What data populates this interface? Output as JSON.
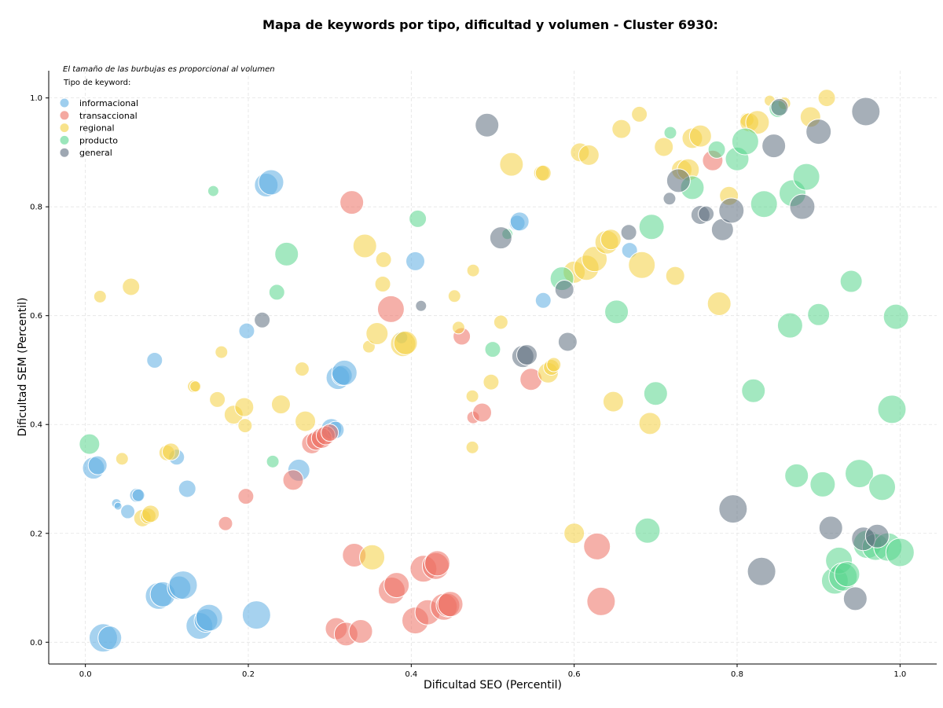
{
  "chart_data": {
    "type": "scatter",
    "title": "Mapa de keywords por tipo, dificultad y volumen - Cluster 6930:",
    "xlabel": "Dificultad SEO (Percentil)",
    "ylabel": "Dificultad SEM (Percentil)",
    "xlim": [
      -0.045,
      1.045
    ],
    "ylim": [
      -0.04,
      1.05
    ],
    "x_ticks": [
      "0.0",
      "0.2",
      "0.4",
      "0.6",
      "0.8",
      "1.0"
    ],
    "y_ticks": [
      "0.0",
      "0.2",
      "0.4",
      "0.6",
      "0.8",
      "1.0"
    ],
    "grid": true,
    "size_note": "El tamaño de las burbujas es proporcional al volumen",
    "legend_title": "Tipo de keyword:",
    "legend_position": "top-left",
    "series": [
      {
        "name": "informacional",
        "color": "#5DADE2",
        "points": [
          [
            0.01,
            0.32,
            14
          ],
          [
            0.015,
            0.325,
            12
          ],
          [
            0.038,
            0.255,
            6
          ],
          [
            0.04,
            0.25,
            5
          ],
          [
            0.052,
            0.24,
            9
          ],
          [
            0.063,
            0.27,
            9
          ],
          [
            0.065,
            0.27,
            8
          ],
          [
            0.085,
            0.518,
            10
          ],
          [
            0.112,
            0.34,
            10
          ],
          [
            0.125,
            0.282,
            11
          ],
          [
            0.022,
            0.008,
            18
          ],
          [
            0.03,
            0.008,
            15
          ],
          [
            0.09,
            0.085,
            17
          ],
          [
            0.095,
            0.088,
            16
          ],
          [
            0.115,
            0.1,
            15
          ],
          [
            0.12,
            0.105,
            18
          ],
          [
            0.14,
            0.03,
            17
          ],
          [
            0.148,
            0.04,
            15
          ],
          [
            0.152,
            0.045,
            17
          ],
          [
            0.21,
            0.05,
            18
          ],
          [
            0.198,
            0.572,
            10
          ],
          [
            0.222,
            0.84,
            15
          ],
          [
            0.228,
            0.845,
            16
          ],
          [
            0.262,
            0.316,
            14
          ],
          [
            0.31,
            0.486,
            15
          ],
          [
            0.315,
            0.49,
            13
          ],
          [
            0.318,
            0.495,
            16
          ],
          [
            0.302,
            0.392,
            13
          ],
          [
            0.307,
            0.39,
            11
          ],
          [
            0.405,
            0.7,
            12
          ],
          [
            0.388,
            0.56,
            8
          ],
          [
            0.53,
            0.77,
            10
          ],
          [
            0.533,
            0.773,
            12
          ],
          [
            0.562,
            0.628,
            10
          ],
          [
            0.668,
            0.72,
            10
          ]
        ]
      },
      {
        "name": "transaccional",
        "color": "#EC7063",
        "points": [
          [
            0.172,
            0.218,
            9
          ],
          [
            0.197,
            0.268,
            10
          ],
          [
            0.255,
            0.298,
            13
          ],
          [
            0.278,
            0.365,
            13
          ],
          [
            0.283,
            0.37,
            12
          ],
          [
            0.29,
            0.375,
            13
          ],
          [
            0.295,
            0.38,
            12
          ],
          [
            0.3,
            0.385,
            11
          ],
          [
            0.327,
            0.808,
            15
          ],
          [
            0.33,
            0.16,
            15
          ],
          [
            0.308,
            0.025,
            14
          ],
          [
            0.32,
            0.015,
            15
          ],
          [
            0.338,
            0.02,
            15
          ],
          [
            0.375,
            0.612,
            17
          ],
          [
            0.376,
            0.095,
            17
          ],
          [
            0.382,
            0.105,
            16
          ],
          [
            0.405,
            0.04,
            17
          ],
          [
            0.415,
            0.135,
            17
          ],
          [
            0.42,
            0.055,
            16
          ],
          [
            0.43,
            0.14,
            17
          ],
          [
            0.432,
            0.145,
            16
          ],
          [
            0.44,
            0.065,
            17
          ],
          [
            0.445,
            0.068,
            15
          ],
          [
            0.448,
            0.07,
            16
          ],
          [
            0.462,
            0.562,
            11
          ],
          [
            0.476,
            0.413,
            8
          ],
          [
            0.487,
            0.422,
            12
          ],
          [
            0.547,
            0.483,
            14
          ],
          [
            0.628,
            0.176,
            17
          ],
          [
            0.633,
            0.075,
            18
          ],
          [
            0.77,
            0.885,
            13
          ]
        ]
      },
      {
        "name": "regional",
        "color": "#F4D03F",
        "points": [
          [
            0.018,
            0.635,
            8
          ],
          [
            0.045,
            0.337,
            8
          ],
          [
            0.056,
            0.653,
            11
          ],
          [
            0.07,
            0.228,
            11
          ],
          [
            0.077,
            0.232,
            10
          ],
          [
            0.08,
            0.236,
            11
          ],
          [
            0.1,
            0.348,
            10
          ],
          [
            0.105,
            0.35,
            11
          ],
          [
            0.133,
            0.47,
            8
          ],
          [
            0.135,
            0.47,
            7
          ],
          [
            0.162,
            0.446,
            10
          ],
          [
            0.167,
            0.533,
            8
          ],
          [
            0.182,
            0.418,
            12
          ],
          [
            0.195,
            0.432,
            12
          ],
          [
            0.196,
            0.398,
            9
          ],
          [
            0.24,
            0.437,
            12
          ],
          [
            0.266,
            0.502,
            9
          ],
          [
            0.27,
            0.406,
            13
          ],
          [
            0.343,
            0.728,
            15
          ],
          [
            0.348,
            0.543,
            8
          ],
          [
            0.352,
            0.156,
            16
          ],
          [
            0.358,
            0.567,
            14
          ],
          [
            0.365,
            0.658,
            10
          ],
          [
            0.366,
            0.703,
            10
          ],
          [
            0.39,
            0.548,
            16
          ],
          [
            0.393,
            0.55,
            15
          ],
          [
            0.453,
            0.636,
            8
          ],
          [
            0.475,
            0.358,
            8
          ],
          [
            0.475,
            0.452,
            8
          ],
          [
            0.476,
            0.683,
            8
          ],
          [
            0.458,
            0.578,
            8
          ],
          [
            0.498,
            0.478,
            10
          ],
          [
            0.51,
            0.588,
            9
          ],
          [
            0.523,
            0.878,
            15
          ],
          [
            0.56,
            0.862,
            10
          ],
          [
            0.562,
            0.862,
            10
          ],
          [
            0.568,
            0.495,
            13
          ],
          [
            0.572,
            0.505,
            10
          ],
          [
            0.575,
            0.51,
            9
          ],
          [
            0.6,
            0.2,
            13
          ],
          [
            0.6,
            0.68,
            14
          ],
          [
            0.607,
            0.9,
            12
          ],
          [
            0.615,
            0.688,
            16
          ],
          [
            0.618,
            0.895,
            13
          ],
          [
            0.625,
            0.704,
            16
          ],
          [
            0.64,
            0.735,
            15
          ],
          [
            0.645,
            0.74,
            13
          ],
          [
            0.648,
            0.442,
            13
          ],
          [
            0.658,
            0.943,
            12
          ],
          [
            0.683,
            0.693,
            17
          ],
          [
            0.68,
            0.97,
            10
          ],
          [
            0.693,
            0.402,
            14
          ],
          [
            0.71,
            0.91,
            12
          ],
          [
            0.724,
            0.673,
            12
          ],
          [
            0.732,
            0.868,
            13
          ],
          [
            0.74,
            0.868,
            14
          ],
          [
            0.745,
            0.926,
            13
          ],
          [
            0.755,
            0.93,
            14
          ],
          [
            0.778,
            0.622,
            15
          ],
          [
            0.79,
            0.82,
            12
          ],
          [
            0.812,
            0.96,
            9
          ],
          [
            0.815,
            0.955,
            12
          ],
          [
            0.825,
            0.955,
            15
          ],
          [
            0.84,
            0.995,
            7
          ],
          [
            0.858,
            0.99,
            8
          ],
          [
            0.89,
            0.965,
            13
          ],
          [
            0.91,
            1.0,
            11
          ]
        ]
      },
      {
        "name": "producto",
        "color": "#58D68D",
        "points": [
          [
            0.005,
            0.364,
            13
          ],
          [
            0.157,
            0.829,
            7
          ],
          [
            0.23,
            0.332,
            8
          ],
          [
            0.235,
            0.643,
            10
          ],
          [
            0.247,
            0.713,
            15
          ],
          [
            0.408,
            0.778,
            11
          ],
          [
            0.5,
            0.538,
            10
          ],
          [
            0.518,
            0.75,
            7
          ],
          [
            0.585,
            0.668,
            15
          ],
          [
            0.652,
            0.607,
            15
          ],
          [
            0.69,
            0.205,
            16
          ],
          [
            0.7,
            0.457,
            15
          ],
          [
            0.695,
            0.763,
            16
          ],
          [
            0.718,
            0.936,
            8
          ],
          [
            0.745,
            0.835,
            15
          ],
          [
            0.775,
            0.905,
            11
          ],
          [
            0.8,
            0.888,
            15
          ],
          [
            0.81,
            0.92,
            17
          ],
          [
            0.82,
            0.462,
            15
          ],
          [
            0.833,
            0.805,
            17
          ],
          [
            0.85,
            0.98,
            11
          ],
          [
            0.865,
            0.582,
            16
          ],
          [
            0.873,
            0.306,
            15
          ],
          [
            0.868,
            0.825,
            17
          ],
          [
            0.885,
            0.855,
            17
          ],
          [
            0.9,
            0.602,
            14
          ],
          [
            0.905,
            0.29,
            16
          ],
          [
            0.92,
            0.113,
            17
          ],
          [
            0.925,
            0.15,
            17
          ],
          [
            0.93,
            0.12,
            18
          ],
          [
            0.935,
            0.125,
            16
          ],
          [
            0.94,
            0.663,
            14
          ],
          [
            0.95,
            0.31,
            18
          ],
          [
            0.96,
            0.18,
            18
          ],
          [
            0.97,
            0.175,
            17
          ],
          [
            0.978,
            0.285,
            17
          ],
          [
            0.985,
            0.175,
            18
          ],
          [
            0.99,
            0.428,
            18
          ],
          [
            0.995,
            0.598,
            16
          ],
          [
            1.0,
            0.165,
            18
          ]
        ]
      },
      {
        "name": "general",
        "color": "#5D6D7E",
        "points": [
          [
            0.217,
            0.592,
            10
          ],
          [
            0.412,
            0.618,
            7
          ],
          [
            0.493,
            0.95,
            15
          ],
          [
            0.51,
            0.743,
            14
          ],
          [
            0.537,
            0.525,
            14
          ],
          [
            0.542,
            0.528,
            13
          ],
          [
            0.588,
            0.648,
            12
          ],
          [
            0.592,
            0.552,
            12
          ],
          [
            0.667,
            0.753,
            10
          ],
          [
            0.717,
            0.815,
            8
          ],
          [
            0.728,
            0.848,
            15
          ],
          [
            0.755,
            0.785,
            12
          ],
          [
            0.762,
            0.787,
            10
          ],
          [
            0.782,
            0.758,
            14
          ],
          [
            0.793,
            0.793,
            16
          ],
          [
            0.795,
            0.245,
            18
          ],
          [
            0.83,
            0.13,
            18
          ],
          [
            0.845,
            0.912,
            15
          ],
          [
            0.852,
            0.983,
            11
          ],
          [
            0.88,
            0.8,
            16
          ],
          [
            0.9,
            0.938,
            16
          ],
          [
            0.915,
            0.21,
            15
          ],
          [
            0.945,
            0.08,
            15
          ],
          [
            0.955,
            0.19,
            15
          ],
          [
            0.958,
            0.975,
            18
          ],
          [
            0.972,
            0.195,
            15
          ]
        ]
      }
    ]
  }
}
